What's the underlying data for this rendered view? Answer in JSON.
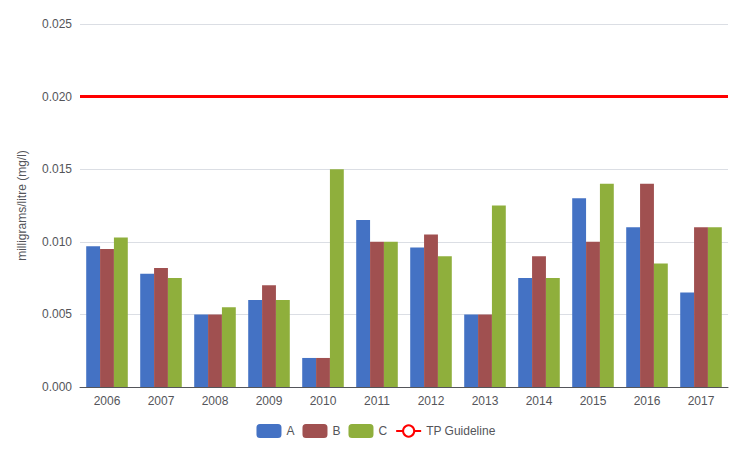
{
  "chart_data": {
    "type": "bar",
    "categories": [
      "2006",
      "2007",
      "2008",
      "2009",
      "2010",
      "2011",
      "2012",
      "2013",
      "2014",
      "2015",
      "2016",
      "2017"
    ],
    "series": [
      {
        "name": "A",
        "color": "#4472C4",
        "values": [
          0.0097,
          0.0078,
          0.005,
          0.006,
          0.002,
          0.0115,
          0.0096,
          0.005,
          0.0075,
          0.013,
          0.011,
          0.0065
        ]
      },
      {
        "name": "B",
        "color": "#A05050",
        "values": [
          0.0095,
          0.0082,
          0.005,
          0.007,
          0.002,
          0.01,
          0.0105,
          0.005,
          0.009,
          0.01,
          0.014,
          0.011
        ]
      },
      {
        "name": "C",
        "color": "#8FAF3C",
        "values": [
          0.0103,
          0.0075,
          0.0055,
          0.006,
          0.015,
          0.01,
          0.009,
          0.0125,
          0.0075,
          0.014,
          0.0085,
          0.011
        ]
      },
      {
        "name": "TP Guideline",
        "type": "hline",
        "color": "#FF0000",
        "value": 0.02
      }
    ],
    "ylabel": "milligrams/litre (mg/l)",
    "ylim": [
      0,
      0.025
    ],
    "yticks": [
      {
        "value": 0,
        "label": "0.000"
      },
      {
        "value": 0.005,
        "label": "0.005"
      },
      {
        "value": 0.01,
        "label": "0.010"
      },
      {
        "value": 0.015,
        "label": "0.015"
      },
      {
        "value": 0.02,
        "label": "0.020"
      },
      {
        "value": 0.025,
        "label": "0.025"
      }
    ],
    "grid": true,
    "legend": "bottom"
  }
}
